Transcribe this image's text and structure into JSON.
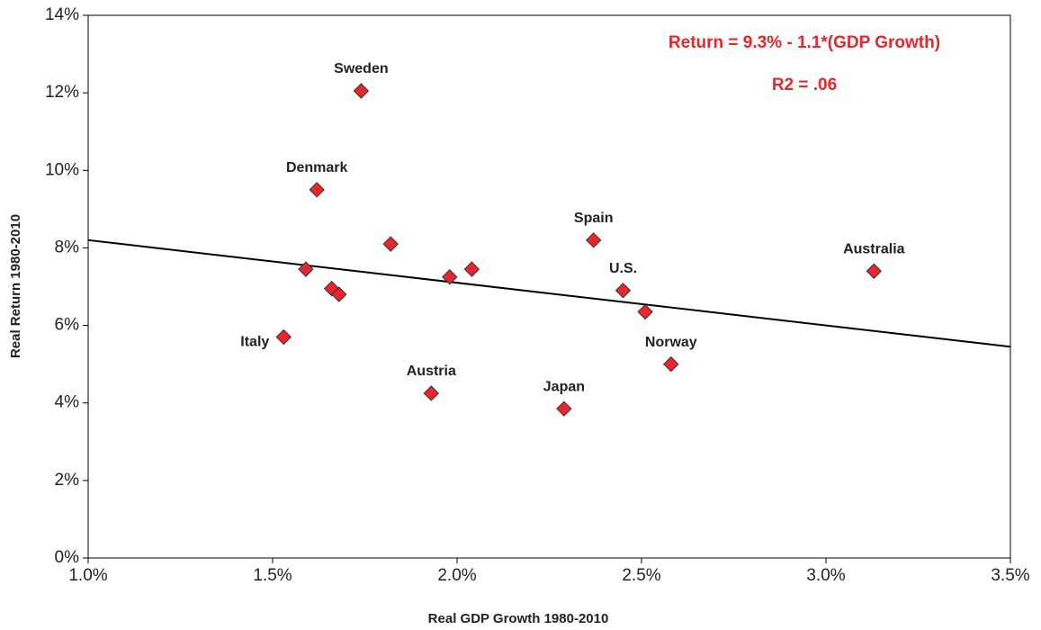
{
  "chart_data": {
    "type": "scatter",
    "xlabel": "Real GDP Growth 1980-2010",
    "ylabel": "Real Return 1980-2010",
    "annotations": [
      "Return = 9.3% - 1.1*(GDP Growth)",
      "R2 = .06"
    ],
    "annotation_color": "#e8262b",
    "xlim": [
      1.0,
      3.5
    ],
    "ylim": [
      0,
      14
    ],
    "xticks": [
      {
        "value": 1.0,
        "label": "1.0%"
      },
      {
        "value": 1.5,
        "label": "1.5%"
      },
      {
        "value": 2.0,
        "label": "2.0%"
      },
      {
        "value": 2.5,
        "label": "2.5%"
      },
      {
        "value": 3.0,
        "label": "3.0%"
      },
      {
        "value": 3.5,
        "label": "3.5%"
      }
    ],
    "yticks": [
      {
        "value": 0,
        "label": "0%"
      },
      {
        "value": 2,
        "label": "2%"
      },
      {
        "value": 4,
        "label": "4%"
      },
      {
        "value": 6,
        "label": "6%"
      },
      {
        "value": 8,
        "label": "8%"
      },
      {
        "value": 10,
        "label": "10%"
      },
      {
        "value": 12,
        "label": "12%"
      },
      {
        "value": 14,
        "label": "14%"
      }
    ],
    "grid": false,
    "series": [
      {
        "color": "#e8262b",
        "x": [
          1.74,
          1.62,
          1.82,
          1.59,
          1.66,
          1.68,
          1.53,
          1.98,
          2.04,
          1.93,
          2.29,
          2.37,
          2.45,
          2.51,
          2.58,
          3.13
        ],
        "values": [
          12.05,
          9.5,
          8.1,
          7.45,
          6.95,
          6.8,
          5.7,
          7.25,
          7.45,
          4.25,
          3.85,
          8.2,
          6.9,
          6.35,
          5.0,
          7.4
        ],
        "labels": [
          "Sweden",
          "Denmark",
          null,
          null,
          null,
          null,
          "Italy",
          null,
          null,
          "Austria",
          "Japan",
          "Spain",
          "U.S.",
          null,
          "Norway",
          "Australia"
        ]
      }
    ],
    "trendline": {
      "color": "#000000",
      "x": [
        1.0,
        3.5
      ],
      "values": [
        8.2,
        5.45
      ]
    }
  }
}
